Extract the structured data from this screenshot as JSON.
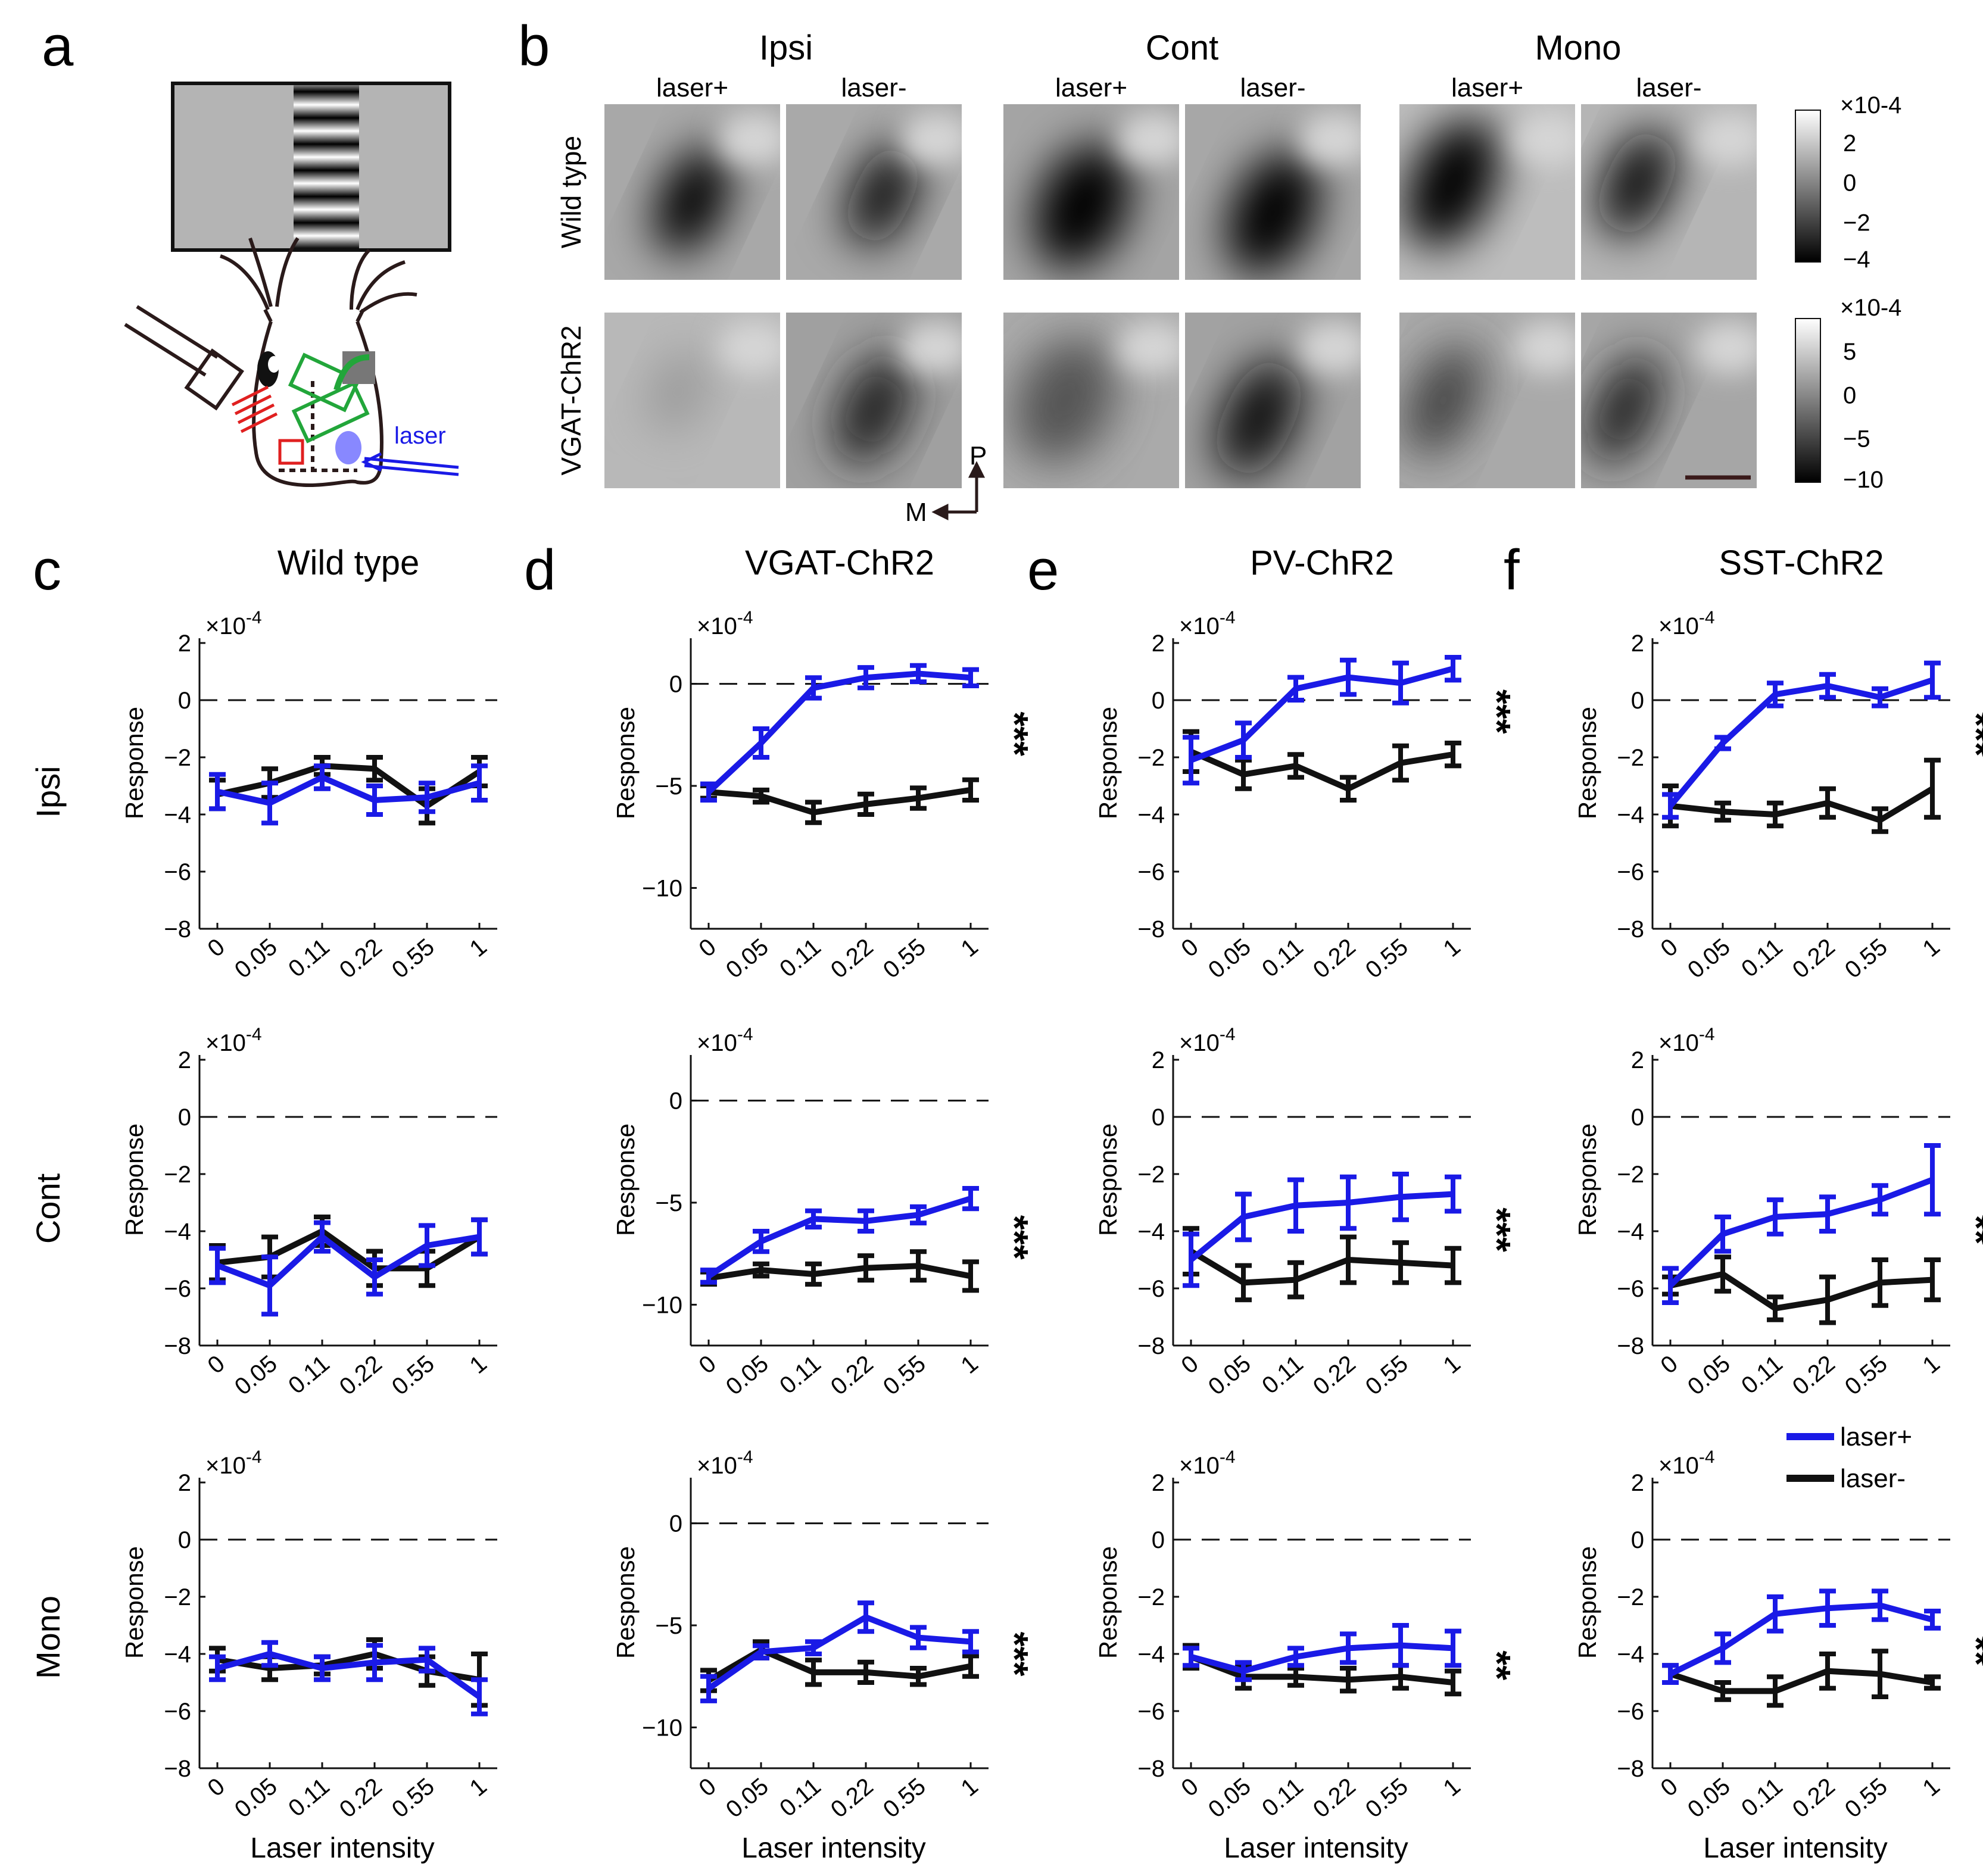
{
  "panel_labels": {
    "a": "a",
    "b": "b",
    "c": "c",
    "d": "d",
    "e": "e",
    "f": "f"
  },
  "imaging": {
    "conditions": [
      "Ipsi",
      "Cont",
      "Mono"
    ],
    "laser_labels": [
      "laser+",
      "laser-"
    ],
    "rows": [
      "Wild type",
      "VGAT-ChR2"
    ],
    "colorbars": [
      {
        "exponent": "×10-4",
        "ticks": [
          "2",
          "0",
          "−2",
          "−4"
        ]
      },
      {
        "exponent": "×10-4",
        "ticks": [
          "5",
          "0",
          "−5",
          "−10"
        ]
      }
    ],
    "axis_p": "P",
    "axis_m": "M"
  },
  "schematic": {
    "laser_label": "laser"
  },
  "legend": {
    "blue": "laser+",
    "black": "laser-"
  },
  "colors": {
    "laser_plus": "#1a1ae6",
    "laser_minus": "#111111",
    "red": "#e02020",
    "green": "#22a63a",
    "blue_spot": "#8888ff"
  },
  "chart_data": [
    {
      "type": "line",
      "title": "Wild type",
      "row": "Ipsi",
      "exponent": "×10",
      "exp": "-4",
      "ylabel": "Response",
      "xlabel": "",
      "ylim": [
        -8,
        2
      ],
      "yticks": [
        2,
        0,
        -2,
        -4,
        -6,
        -8
      ],
      "categories": [
        "0",
        "0.05",
        "0.11",
        "0.22",
        "0.55",
        "1"
      ],
      "series": [
        {
          "name": "laser+",
          "values": [
            -3.2,
            -3.6,
            -2.7,
            -3.5,
            -3.4,
            -2.9
          ],
          "errors": [
            0.6,
            0.7,
            0.4,
            0.5,
            0.5,
            0.6
          ]
        },
        {
          "name": "laser-",
          "values": [
            -3.3,
            -2.9,
            -2.3,
            -2.4,
            -3.7,
            -2.5
          ],
          "errors": [
            0.5,
            0.5,
            0.3,
            0.4,
            0.6,
            0.5
          ]
        }
      ],
      "significance": ""
    },
    {
      "type": "line",
      "title": "VGAT-ChR2",
      "row": "Ipsi",
      "exponent": "×10",
      "exp": "-4",
      "ylabel": "Response",
      "xlabel": "",
      "ylim": [
        -12,
        2
      ],
      "yticks": [
        0,
        -5,
        -10
      ],
      "categories": [
        "0",
        "0.05",
        "0.11",
        "0.22",
        "0.55",
        "1"
      ],
      "series": [
        {
          "name": "laser+",
          "values": [
            -5.3,
            -2.9,
            -0.2,
            0.3,
            0.5,
            0.3
          ],
          "errors": [
            0.4,
            0.7,
            0.5,
            0.5,
            0.4,
            0.4
          ]
        },
        {
          "name": "laser-",
          "values": [
            -5.3,
            -5.5,
            -6.3,
            -5.9,
            -5.6,
            -5.2
          ],
          "errors": [
            0.3,
            0.3,
            0.5,
            0.5,
            0.5,
            0.5
          ]
        }
      ],
      "significance": "***"
    },
    {
      "type": "line",
      "title": "PV-ChR2",
      "row": "Ipsi",
      "exponent": "×10",
      "exp": "-4",
      "ylabel": "Response",
      "xlabel": "",
      "ylim": [
        -8,
        2
      ],
      "yticks": [
        2,
        0,
        -2,
        -4,
        -6,
        -8
      ],
      "categories": [
        "0",
        "0.05",
        "0.11",
        "0.22",
        "0.55",
        "1"
      ],
      "series": [
        {
          "name": "laser+",
          "values": [
            -2.1,
            -1.4,
            0.4,
            0.8,
            0.6,
            1.1
          ],
          "errors": [
            0.8,
            0.6,
            0.4,
            0.6,
            0.7,
            0.4
          ]
        },
        {
          "name": "laser-",
          "values": [
            -1.8,
            -2.6,
            -2.3,
            -3.1,
            -2.2,
            -1.9
          ],
          "errors": [
            0.7,
            0.5,
            0.4,
            0.4,
            0.6,
            0.4
          ]
        }
      ],
      "significance": "***"
    },
    {
      "type": "line",
      "title": "SST-ChR2",
      "row": "Ipsi",
      "exponent": "×10",
      "exp": "-4",
      "ylabel": "Response",
      "xlabel": "",
      "ylim": [
        -8,
        2
      ],
      "yticks": [
        2,
        0,
        -2,
        -4,
        -6,
        -8
      ],
      "categories": [
        "0",
        "0.05",
        "0.11",
        "0.22",
        "0.55",
        "1"
      ],
      "series": [
        {
          "name": "laser+",
          "values": [
            -3.7,
            -1.5,
            0.2,
            0.5,
            0.1,
            0.7
          ],
          "errors": [
            0.4,
            0.2,
            0.4,
            0.4,
            0.3,
            0.6
          ]
        },
        {
          "name": "laser-",
          "values": [
            -3.7,
            -3.9,
            -4.0,
            -3.6,
            -4.2,
            -3.1
          ],
          "errors": [
            0.7,
            0.3,
            0.4,
            0.5,
            0.4,
            1.0
          ]
        }
      ],
      "significance": "***"
    },
    {
      "type": "line",
      "title": "",
      "row": "Cont",
      "exponent": "×10",
      "exp": "-4",
      "ylabel": "Response",
      "xlabel": "",
      "ylim": [
        -8,
        2
      ],
      "yticks": [
        2,
        0,
        -2,
        -4,
        -6,
        -8
      ],
      "categories": [
        "0",
        "0.05",
        "0.11",
        "0.22",
        "0.55",
        "1"
      ],
      "series": [
        {
          "name": "laser+",
          "values": [
            -5.2,
            -5.9,
            -4.2,
            -5.6,
            -4.5,
            -4.2
          ],
          "errors": [
            0.6,
            1.0,
            0.5,
            0.6,
            0.7,
            0.6
          ]
        },
        {
          "name": "laser-",
          "values": [
            -5.1,
            -4.9,
            -4.0,
            -5.3,
            -5.3,
            -4.2
          ],
          "errors": [
            0.6,
            0.7,
            0.5,
            0.6,
            0.6,
            0.6
          ]
        }
      ],
      "significance": ""
    },
    {
      "type": "line",
      "title": "",
      "row": "Cont",
      "exponent": "×10",
      "exp": "-4",
      "ylabel": "Response",
      "xlabel": "",
      "ylim": [
        -12,
        2
      ],
      "yticks": [
        0,
        -5,
        -10
      ],
      "categories": [
        "0",
        "0.05",
        "0.11",
        "0.22",
        "0.55",
        "1"
      ],
      "series": [
        {
          "name": "laser+",
          "values": [
            -8.6,
            -6.9,
            -5.8,
            -5.9,
            -5.6,
            -4.8
          ],
          "errors": [
            0.3,
            0.5,
            0.4,
            0.5,
            0.4,
            0.5
          ]
        },
        {
          "name": "laser-",
          "values": [
            -8.7,
            -8.3,
            -8.5,
            -8.2,
            -8.1,
            -8.6
          ],
          "errors": [
            0.3,
            0.3,
            0.5,
            0.6,
            0.7,
            0.7
          ]
        }
      ],
      "significance": "***"
    },
    {
      "type": "line",
      "title": "",
      "row": "Cont",
      "exponent": "×10",
      "exp": "-4",
      "ylabel": "Response",
      "xlabel": "",
      "ylim": [
        -8,
        2
      ],
      "yticks": [
        2,
        0,
        -2,
        -4,
        -6,
        -8
      ],
      "categories": [
        "0",
        "0.05",
        "0.11",
        "0.22",
        "0.55",
        "1"
      ],
      "series": [
        {
          "name": "laser+",
          "values": [
            -5.0,
            -3.5,
            -3.1,
            -3.0,
            -2.8,
            -2.7
          ],
          "errors": [
            0.9,
            0.8,
            0.9,
            0.9,
            0.8,
            0.6
          ]
        },
        {
          "name": "laser-",
          "values": [
            -4.7,
            -5.8,
            -5.7,
            -5.0,
            -5.1,
            -5.2
          ],
          "errors": [
            0.8,
            0.6,
            0.6,
            0.8,
            0.7,
            0.6
          ]
        }
      ],
      "significance": "***"
    },
    {
      "type": "line",
      "title": "",
      "row": "Cont",
      "exponent": "×10",
      "exp": "-4",
      "ylabel": "Response",
      "xlabel": "",
      "ylim": [
        -8,
        2
      ],
      "yticks": [
        2,
        0,
        -2,
        -4,
        -6,
        -8
      ],
      "categories": [
        "0",
        "0.05",
        "0.11",
        "0.22",
        "0.55",
        "1"
      ],
      "series": [
        {
          "name": "laser+",
          "values": [
            -5.9,
            -4.1,
            -3.5,
            -3.4,
            -2.9,
            -2.2
          ],
          "errors": [
            0.6,
            0.6,
            0.6,
            0.6,
            0.5,
            1.2
          ]
        },
        {
          "name": "laser-",
          "values": [
            -5.9,
            -5.5,
            -6.7,
            -6.4,
            -5.8,
            -5.7
          ],
          "errors": [
            0.3,
            0.6,
            0.4,
            0.8,
            0.8,
            0.7
          ]
        }
      ],
      "significance": "**"
    },
    {
      "type": "line",
      "title": "",
      "row": "Mono",
      "exponent": "×10",
      "exp": "-4",
      "ylabel": "Response",
      "xlabel": "Laser intensity",
      "ylim": [
        -8,
        2
      ],
      "yticks": [
        2,
        0,
        -2,
        -4,
        -6,
        -8
      ],
      "categories": [
        "0",
        "0.05",
        "0.11",
        "0.22",
        "0.55",
        "1"
      ],
      "series": [
        {
          "name": "laser+",
          "values": [
            -4.5,
            -4.0,
            -4.5,
            -4.3,
            -4.2,
            -5.5
          ],
          "errors": [
            0.4,
            0.4,
            0.4,
            0.6,
            0.4,
            0.6
          ]
        },
        {
          "name": "laser-",
          "values": [
            -4.2,
            -4.5,
            -4.4,
            -4.0,
            -4.6,
            -4.9
          ],
          "errors": [
            0.4,
            0.4,
            0.3,
            0.5,
            0.5,
            0.9
          ]
        }
      ],
      "significance": ""
    },
    {
      "type": "line",
      "title": "",
      "row": "Mono",
      "exponent": "×10",
      "exp": "-4",
      "ylabel": "Response",
      "xlabel": "Laser intensity",
      "ylim": [
        -12,
        2
      ],
      "yticks": [
        0,
        -5,
        -10
      ],
      "categories": [
        "0",
        "0.05",
        "0.11",
        "0.22",
        "0.55",
        "1"
      ],
      "series": [
        {
          "name": "laser+",
          "values": [
            -8.1,
            -6.3,
            -6.1,
            -4.6,
            -5.6,
            -5.8
          ],
          "errors": [
            0.6,
            0.3,
            0.3,
            0.7,
            0.5,
            0.5
          ]
        },
        {
          "name": "laser-",
          "values": [
            -7.7,
            -6.2,
            -7.3,
            -7.3,
            -7.5,
            -7.0
          ],
          "errors": [
            0.5,
            0.4,
            0.6,
            0.5,
            0.4,
            0.5
          ]
        }
      ],
      "significance": "***"
    },
    {
      "type": "line",
      "title": "",
      "row": "Mono",
      "exponent": "×10",
      "exp": "-4",
      "ylabel": "Response",
      "xlabel": "Laser intensity",
      "ylim": [
        -8,
        2
      ],
      "yticks": [
        2,
        0,
        -2,
        -4,
        -6,
        -8
      ],
      "categories": [
        "0",
        "0.05",
        "0.11",
        "0.22",
        "0.55",
        "1"
      ],
      "series": [
        {
          "name": "laser+",
          "values": [
            -4.1,
            -4.6,
            -4.1,
            -3.8,
            -3.7,
            -3.8
          ],
          "errors": [
            0.3,
            0.3,
            0.3,
            0.5,
            0.7,
            0.6
          ]
        },
        {
          "name": "laser-",
          "values": [
            -4.1,
            -4.8,
            -4.8,
            -4.9,
            -4.8,
            -5.0
          ],
          "errors": [
            0.4,
            0.4,
            0.3,
            0.4,
            0.4,
            0.4
          ]
        }
      ],
      "significance": "**"
    },
    {
      "type": "line",
      "title": "",
      "row": "Mono",
      "exponent": "×10",
      "exp": "-4",
      "ylabel": "Response",
      "xlabel": "Laser intensity",
      "ylim": [
        -8,
        2
      ],
      "yticks": [
        2,
        0,
        -2,
        -4,
        -6,
        -8
      ],
      "categories": [
        "0",
        "0.05",
        "0.11",
        "0.22",
        "0.55",
        "1"
      ],
      "series": [
        {
          "name": "laser+",
          "values": [
            -4.7,
            -3.8,
            -2.6,
            -2.4,
            -2.3,
            -2.8
          ],
          "errors": [
            0.3,
            0.5,
            0.6,
            0.6,
            0.5,
            0.3
          ]
        },
        {
          "name": "laser-",
          "values": [
            -4.7,
            -5.3,
            -5.3,
            -4.6,
            -4.7,
            -5.0
          ],
          "errors": [
            0.3,
            0.3,
            0.5,
            0.6,
            0.8,
            0.2
          ]
        }
      ],
      "significance": "**"
    }
  ]
}
